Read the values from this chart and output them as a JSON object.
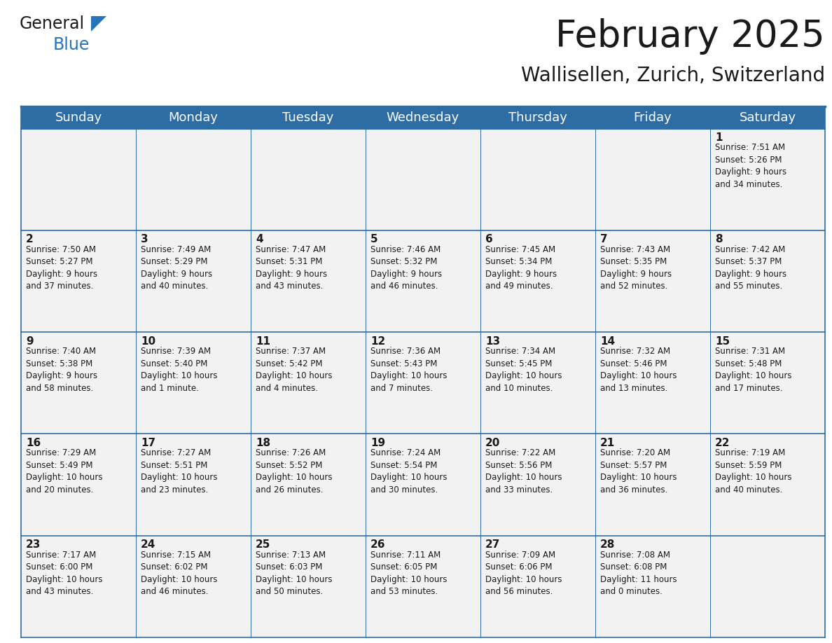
{
  "title": "February 2025",
  "subtitle": "Wallisellen, Zurich, Switzerland",
  "header_color": "#2E6DA4",
  "header_text_color": "#FFFFFF",
  "background_color": "#FFFFFF",
  "cell_bg_color": "#F2F2F2",
  "border_color": "#2E6DA4",
  "text_color": "#1a1a1a",
  "logo_color_black": "#1a1a1a",
  "logo_color_blue": "#2475BB",
  "day_names": [
    "Sunday",
    "Monday",
    "Tuesday",
    "Wednesday",
    "Thursday",
    "Friday",
    "Saturday"
  ],
  "weeks": [
    [
      {
        "day": null,
        "info": null
      },
      {
        "day": null,
        "info": null
      },
      {
        "day": null,
        "info": null
      },
      {
        "day": null,
        "info": null
      },
      {
        "day": null,
        "info": null
      },
      {
        "day": null,
        "info": null
      },
      {
        "day": "1",
        "info": "Sunrise: 7:51 AM\nSunset: 5:26 PM\nDaylight: 9 hours\nand 34 minutes."
      }
    ],
    [
      {
        "day": "2",
        "info": "Sunrise: 7:50 AM\nSunset: 5:27 PM\nDaylight: 9 hours\nand 37 minutes."
      },
      {
        "day": "3",
        "info": "Sunrise: 7:49 AM\nSunset: 5:29 PM\nDaylight: 9 hours\nand 40 minutes."
      },
      {
        "day": "4",
        "info": "Sunrise: 7:47 AM\nSunset: 5:31 PM\nDaylight: 9 hours\nand 43 minutes."
      },
      {
        "day": "5",
        "info": "Sunrise: 7:46 AM\nSunset: 5:32 PM\nDaylight: 9 hours\nand 46 minutes."
      },
      {
        "day": "6",
        "info": "Sunrise: 7:45 AM\nSunset: 5:34 PM\nDaylight: 9 hours\nand 49 minutes."
      },
      {
        "day": "7",
        "info": "Sunrise: 7:43 AM\nSunset: 5:35 PM\nDaylight: 9 hours\nand 52 minutes."
      },
      {
        "day": "8",
        "info": "Sunrise: 7:42 AM\nSunset: 5:37 PM\nDaylight: 9 hours\nand 55 minutes."
      }
    ],
    [
      {
        "day": "9",
        "info": "Sunrise: 7:40 AM\nSunset: 5:38 PM\nDaylight: 9 hours\nand 58 minutes."
      },
      {
        "day": "10",
        "info": "Sunrise: 7:39 AM\nSunset: 5:40 PM\nDaylight: 10 hours\nand 1 minute."
      },
      {
        "day": "11",
        "info": "Sunrise: 7:37 AM\nSunset: 5:42 PM\nDaylight: 10 hours\nand 4 minutes."
      },
      {
        "day": "12",
        "info": "Sunrise: 7:36 AM\nSunset: 5:43 PM\nDaylight: 10 hours\nand 7 minutes."
      },
      {
        "day": "13",
        "info": "Sunrise: 7:34 AM\nSunset: 5:45 PM\nDaylight: 10 hours\nand 10 minutes."
      },
      {
        "day": "14",
        "info": "Sunrise: 7:32 AM\nSunset: 5:46 PM\nDaylight: 10 hours\nand 13 minutes."
      },
      {
        "day": "15",
        "info": "Sunrise: 7:31 AM\nSunset: 5:48 PM\nDaylight: 10 hours\nand 17 minutes."
      }
    ],
    [
      {
        "day": "16",
        "info": "Sunrise: 7:29 AM\nSunset: 5:49 PM\nDaylight: 10 hours\nand 20 minutes."
      },
      {
        "day": "17",
        "info": "Sunrise: 7:27 AM\nSunset: 5:51 PM\nDaylight: 10 hours\nand 23 minutes."
      },
      {
        "day": "18",
        "info": "Sunrise: 7:26 AM\nSunset: 5:52 PM\nDaylight: 10 hours\nand 26 minutes."
      },
      {
        "day": "19",
        "info": "Sunrise: 7:24 AM\nSunset: 5:54 PM\nDaylight: 10 hours\nand 30 minutes."
      },
      {
        "day": "20",
        "info": "Sunrise: 7:22 AM\nSunset: 5:56 PM\nDaylight: 10 hours\nand 33 minutes."
      },
      {
        "day": "21",
        "info": "Sunrise: 7:20 AM\nSunset: 5:57 PM\nDaylight: 10 hours\nand 36 minutes."
      },
      {
        "day": "22",
        "info": "Sunrise: 7:19 AM\nSunset: 5:59 PM\nDaylight: 10 hours\nand 40 minutes."
      }
    ],
    [
      {
        "day": "23",
        "info": "Sunrise: 7:17 AM\nSunset: 6:00 PM\nDaylight: 10 hours\nand 43 minutes."
      },
      {
        "day": "24",
        "info": "Sunrise: 7:15 AM\nSunset: 6:02 PM\nDaylight: 10 hours\nand 46 minutes."
      },
      {
        "day": "25",
        "info": "Sunrise: 7:13 AM\nSunset: 6:03 PM\nDaylight: 10 hours\nand 50 minutes."
      },
      {
        "day": "26",
        "info": "Sunrise: 7:11 AM\nSunset: 6:05 PM\nDaylight: 10 hours\nand 53 minutes."
      },
      {
        "day": "27",
        "info": "Sunrise: 7:09 AM\nSunset: 6:06 PM\nDaylight: 10 hours\nand 56 minutes."
      },
      {
        "day": "28",
        "info": "Sunrise: 7:08 AM\nSunset: 6:08 PM\nDaylight: 11 hours\nand 0 minutes."
      },
      {
        "day": null,
        "info": null
      }
    ]
  ],
  "title_fontsize": 38,
  "subtitle_fontsize": 20,
  "header_fontsize": 13,
  "day_num_fontsize": 11,
  "info_fontsize": 8.5,
  "logo_fontsize_general": 17,
  "logo_fontsize_blue": 17
}
